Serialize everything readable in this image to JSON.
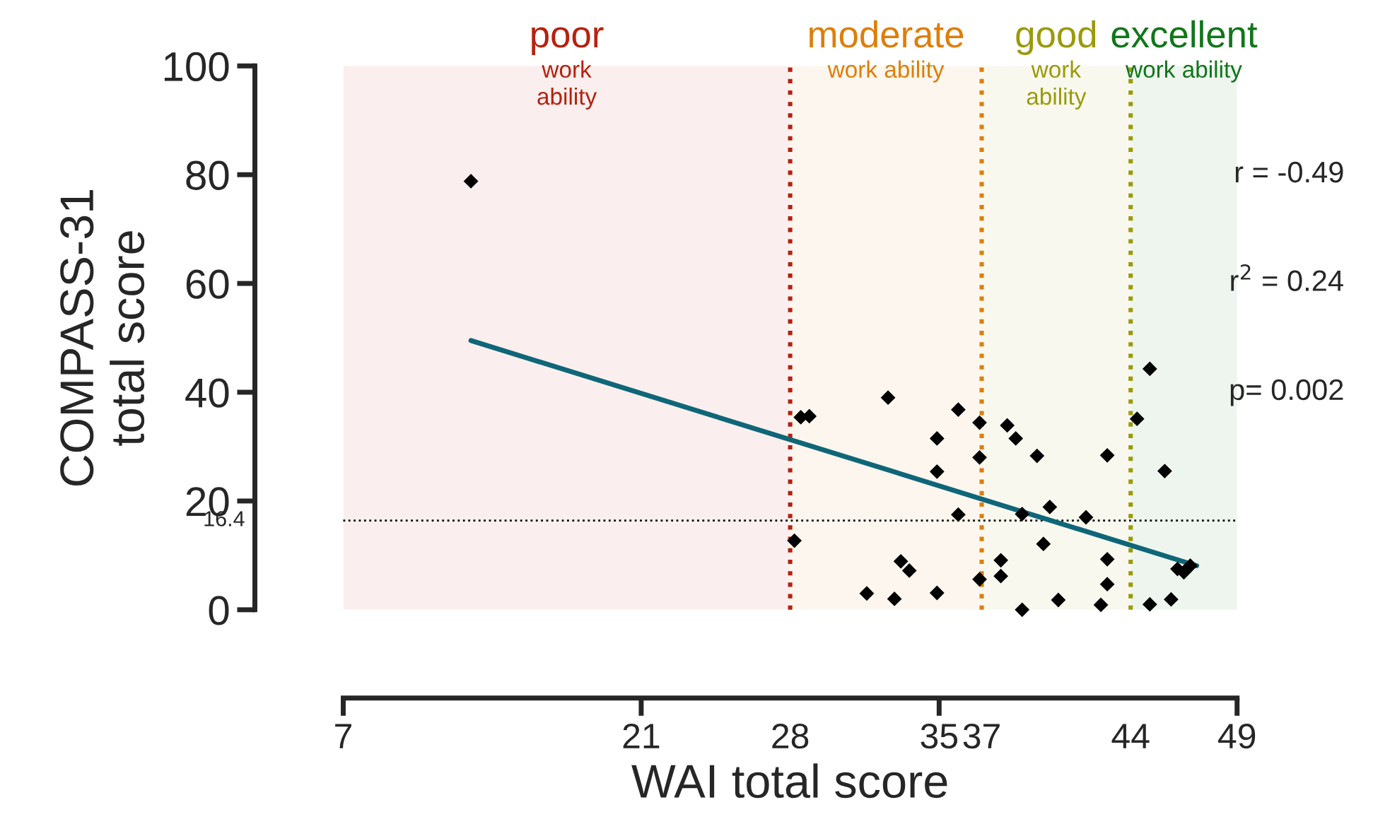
{
  "chart_data": {
    "type": "scatter",
    "xlabel": "WAI total score",
    "ylabel": "COMPASS-31\ntotal score",
    "xlim": [
      7,
      49
    ],
    "ylim": [
      0,
      100
    ],
    "xticks": [
      7,
      21,
      {
        "value": 28,
        "label": "28"
      },
      35,
      {
        "value": 37,
        "label": "37"
      },
      {
        "value": 44,
        "label": "44"
      },
      49
    ],
    "yticks": [
      0,
      20,
      40,
      60,
      80,
      100
    ],
    "grid": false,
    "marker": "diamond",
    "series": [
      {
        "color": "#000000",
        "x": [
          13.0,
          28.5,
          28.9,
          32.6,
          35.9,
          36.9,
          34.9,
          36.9,
          34.9,
          35.9,
          28.2,
          33.2,
          33.6,
          31.6,
          32.9,
          34.9,
          36.9,
          37.9,
          37.9,
          38.2,
          38.6,
          39.6,
          44.9,
          44.3,
          42.9,
          45.6,
          40.2,
          38.9,
          41.9,
          39.9,
          42.9,
          42.9,
          38.9,
          40.6,
          42.6,
          44.9,
          45.9,
          46.2,
          46.5,
          46.8
        ],
        "values": [
          78.8,
          35.4,
          35.6,
          39.0,
          36.8,
          34.4,
          31.5,
          28.0,
          25.4,
          17.5,
          12.7,
          8.9,
          7.2,
          3.0,
          2.0,
          3.1,
          5.6,
          9.1,
          6.2,
          33.9,
          31.5,
          28.3,
          44.3,
          35.1,
          28.4,
          25.5,
          18.9,
          17.6,
          17.0,
          12.1,
          9.3,
          4.7,
          0.0,
          1.8,
          0.9,
          1.0,
          1.9,
          7.5,
          6.9,
          8.1
        ]
      },
      {
        "type": "line",
        "marker": "none",
        "color": "#0f6678",
        "x": [
          13.0,
          47.1
        ],
        "values": [
          49.5,
          8.1
        ]
      }
    ],
    "ref_lines": [
      {
        "axis": "y",
        "value": 16.4,
        "label": "16.4",
        "color": "#000000",
        "line_style": "dotted"
      },
      {
        "axis": "x",
        "value": 28,
        "color": "#b5220f",
        "line_style": "dotted"
      },
      {
        "axis": "x",
        "value": 37,
        "color": "#dd7f0a",
        "line_style": "dotted"
      },
      {
        "axis": "x",
        "value": 44,
        "color": "#9a9a0c",
        "line_style": "dotted"
      }
    ],
    "bands": [
      {
        "axis": "x",
        "from": 7,
        "to": 28,
        "label": "poor\nwork\nability",
        "color": "#b5220f"
      },
      {
        "axis": "x",
        "from": 28,
        "to": 37,
        "label": "moderate\nwork ability",
        "color": "#dd7f0a"
      },
      {
        "axis": "x",
        "from": 37,
        "to": 44,
        "label": "good\nwork\nability",
        "color": "#9a9a0c"
      },
      {
        "axis": "x",
        "from": 44,
        "to": 49,
        "label": "excellent\nwork ability",
        "color": "#11761a"
      }
    ],
    "annotations": [
      "r = -0.49",
      "r$^{2}$ = 0.24",
      "p= 0.002"
    ]
  }
}
